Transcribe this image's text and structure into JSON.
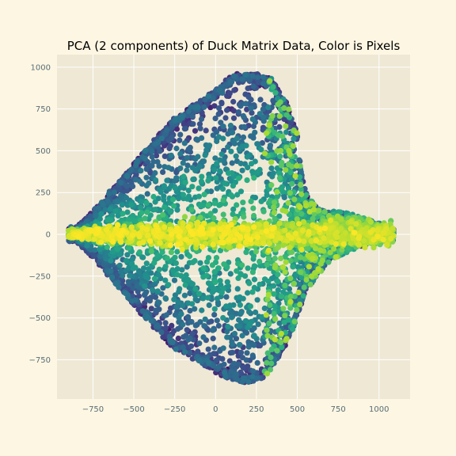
{
  "chart_data": {
    "type": "scatter",
    "title": "PCA (2 components) of Duck Matrix Data, Color is Pixels",
    "xlabel": "",
    "ylabel": "",
    "xlim": [
      -970,
      1190
    ],
    "ylim": [
      -985,
      1075
    ],
    "xticks": [
      -750,
      -500,
      -250,
      0,
      250,
      500,
      750,
      1000
    ],
    "yticks": [
      -750,
      -500,
      -250,
      0,
      250,
      500,
      750,
      1000
    ],
    "xtick_labels": [
      "−750",
      "−500",
      "−250",
      "0",
      "250",
      "500",
      "750",
      "1000"
    ],
    "ytick_labels": [
      "−750",
      "−500",
      "−250",
      "0",
      "250",
      "500",
      "750",
      "1000"
    ],
    "grid": true,
    "colormap": "viridis",
    "color_variable": "Pixels",
    "point_count_approx": 6000,
    "shape_description": "leaf-shaped cloud: pointed tip at left near x=-900,y=0; upper lobe peaks near x=250,y=975; lower lobe bottoms near x=200,y=-900; dense horizontal band along y=0 extending to x=1090",
    "boundary_upper": [
      [
        -900,
        0
      ],
      [
        -750,
        140
      ],
      [
        -500,
        430
      ],
      [
        -250,
        700
      ],
      [
        0,
        870
      ],
      [
        100,
        960
      ],
      [
        250,
        975
      ],
      [
        350,
        930
      ],
      [
        450,
        760
      ],
      [
        500,
        600
      ],
      [
        520,
        400
      ],
      [
        560,
        230
      ],
      [
        620,
        160
      ],
      [
        700,
        140
      ],
      [
        800,
        130
      ],
      [
        900,
        100
      ],
      [
        1000,
        70
      ],
      [
        1090,
        30
      ]
    ],
    "boundary_lower": [
      [
        -900,
        0
      ],
      [
        -750,
        -140
      ],
      [
        -500,
        -430
      ],
      [
        -250,
        -690
      ],
      [
        0,
        -830
      ],
      [
        100,
        -880
      ],
      [
        200,
        -900
      ],
      [
        300,
        -860
      ],
      [
        400,
        -720
      ],
      [
        480,
        -560
      ],
      [
        520,
        -430
      ],
      [
        560,
        -330
      ],
      [
        620,
        -250
      ],
      [
        700,
        -160
      ],
      [
        800,
        -110
      ],
      [
        900,
        -70
      ],
      [
        1000,
        -40
      ],
      [
        1090,
        -20
      ]
    ],
    "high_value_band": {
      "x_range": [
        -900,
        1090
      ],
      "y_center": 0,
      "description": "yellow-green (high pixel values) concentrated along y=0"
    },
    "low_value_regions": "dark purple / blue points along the outer edges of both lobes"
  },
  "colors": {
    "figure_background": "#fdf6e3",
    "plot_background": "#eee8d5",
    "gridline": "#ffffff",
    "tick_label": "#586e75",
    "viridis_low": "#440154",
    "viridis_mid": "#21918c",
    "viridis_high": "#fde725"
  }
}
